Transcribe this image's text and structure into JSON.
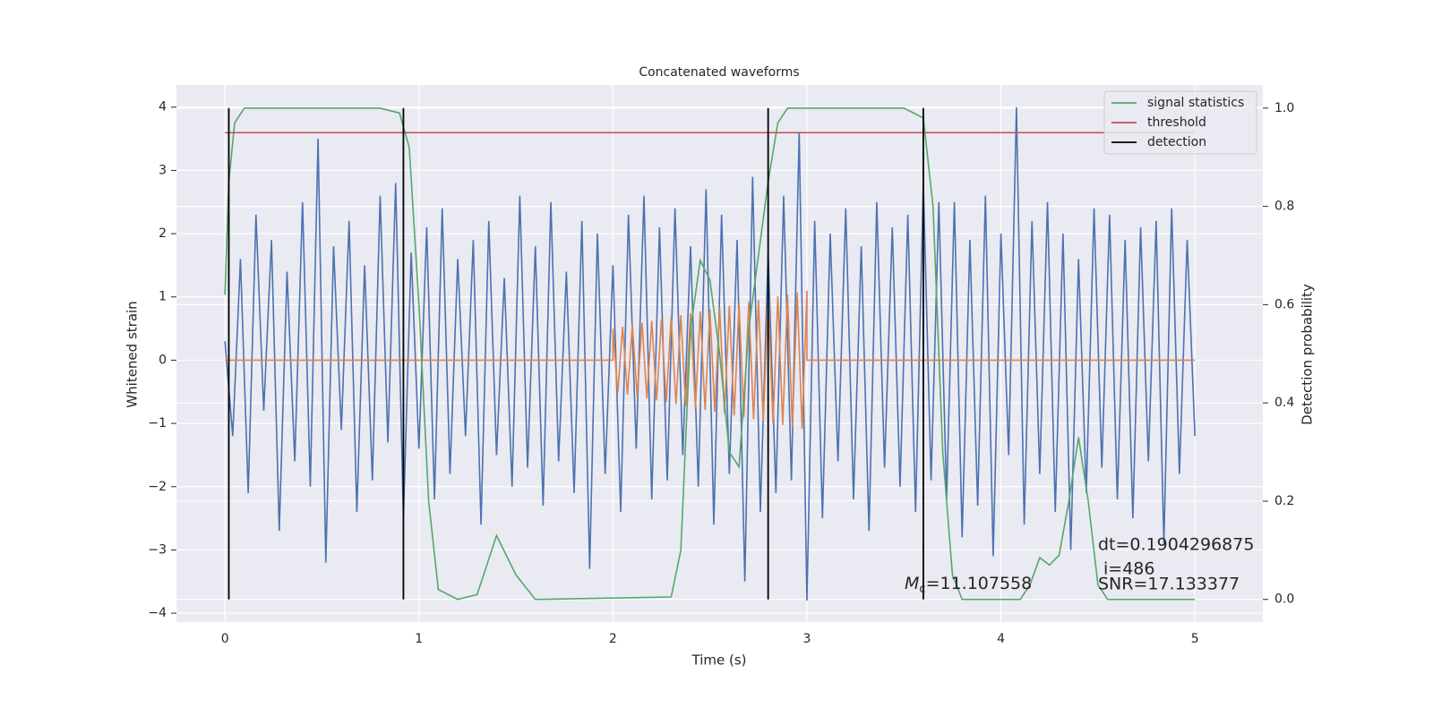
{
  "chart_data": {
    "type": "line",
    "title": "Concatenated waveforms",
    "x_label": "Time (s)",
    "y_label": "Whitened strain",
    "y2_label": "Detection probability",
    "xlim": [
      -0.25,
      5.35
    ],
    "ylim": [
      -4.14,
      4.35
    ],
    "y2lim": [
      -0.046,
      1.047
    ],
    "xticks": [
      0,
      1,
      2,
      3,
      4,
      5
    ],
    "yticks": [
      {
        "value": -4,
        "label": "−4"
      },
      {
        "value": -3,
        "label": "−3"
      },
      {
        "value": -2,
        "label": "−2"
      },
      {
        "value": -1,
        "label": "−1"
      },
      0,
      1,
      2,
      3,
      4
    ],
    "y2ticks": [
      {
        "value": 0,
        "label": "0.0"
      },
      0.2,
      0.4,
      0.6,
      0.8,
      {
        "value": 1,
        "label": "1.0"
      }
    ],
    "grid": true,
    "legend_position": "upper right",
    "series": [
      {
        "color": "#4c72b0",
        "x": [
          0,
          0.04,
          0.08,
          0.12,
          0.16,
          0.2,
          0.24,
          0.28,
          0.32,
          0.36,
          0.4,
          0.44,
          0.48,
          0.52,
          0.56,
          0.6,
          0.64,
          0.68,
          0.72,
          0.76,
          0.8,
          0.84,
          0.88,
          0.92,
          0.96,
          1,
          1.04,
          1.08,
          1.12,
          1.16,
          1.2,
          1.24,
          1.28,
          1.32,
          1.36,
          1.4,
          1.44,
          1.48,
          1.52,
          1.56,
          1.6,
          1.64,
          1.68,
          1.72,
          1.76,
          1.8,
          1.84,
          1.88,
          1.92,
          1.96,
          2,
          2.04,
          2.08,
          2.12,
          2.16,
          2.2,
          2.24,
          2.28,
          2.32,
          2.36,
          2.4,
          2.44,
          2.48,
          2.52,
          2.56,
          2.6,
          2.64,
          2.68,
          2.72,
          2.76,
          2.8,
          2.84,
          2.88,
          2.92,
          2.96,
          3,
          3.04,
          3.08,
          3.12,
          3.16,
          3.2,
          3.24,
          3.28,
          3.32,
          3.36,
          3.4,
          3.44,
          3.48,
          3.52,
          3.56,
          3.6,
          3.64,
          3.68,
          3.72,
          3.76,
          3.8,
          3.84,
          3.88,
          3.92,
          3.96,
          4,
          4.04,
          4.08,
          4.12,
          4.16,
          4.2,
          4.24,
          4.28,
          4.32,
          4.36,
          4.4,
          4.44,
          4.48,
          4.52,
          4.56,
          4.6,
          4.64,
          4.68,
          4.72,
          4.76,
          4.8,
          4.84,
          4.88,
          4.92,
          4.96,
          5
        ],
        "values": [
          0.3,
          -1.2,
          1.6,
          -2.1,
          2.3,
          -0.8,
          1.9,
          -2.7,
          1.4,
          -1.6,
          2.5,
          -2.0,
          3.5,
          -3.2,
          1.8,
          -1.1,
          2.2,
          -2.4,
          1.5,
          -1.9,
          2.6,
          -1.3,
          2.8,
          -2.5,
          1.7,
          -1.4,
          2.1,
          -2.2,
          2.4,
          -1.8,
          1.6,
          -1.2,
          1.9,
          -2.6,
          2.2,
          -1.5,
          1.3,
          -2.0,
          2.6,
          -1.7,
          1.8,
          -2.3,
          2.5,
          -1.6,
          1.4,
          -2.1,
          2.2,
          -3.3,
          2.0,
          -1.8,
          1.5,
          -2.4,
          2.3,
          -1.4,
          2.6,
          -2.2,
          2.1,
          -1.9,
          2.4,
          -1.5,
          1.8,
          -2.0,
          2.7,
          -2.6,
          2.3,
          -1.8,
          1.9,
          -3.5,
          2.9,
          -2.4,
          1.7,
          -2.1,
          2.6,
          -1.9,
          3.6,
          -3.8,
          2.2,
          -2.5,
          2.0,
          -1.6,
          2.4,
          -2.2,
          1.8,
          -2.7,
          2.5,
          -1.7,
          2.1,
          -2.0,
          2.3,
          -2.4,
          2.8,
          -1.9,
          2.5,
          -2.2,
          2.5,
          -2.8,
          1.9,
          -2.3,
          2.6,
          -3.1,
          2.0,
          -1.5,
          4.0,
          -2.6,
          2.2,
          -1.8,
          2.5,
          -2.4,
          2.0,
          -3.0,
          1.6,
          -2.1,
          2.4,
          -1.7,
          2.3,
          -2.2,
          1.9,
          -2.5,
          2.1,
          -1.6,
          2.2,
          -2.9,
          2.4,
          -1.8,
          1.9,
          -1.2
        ]
      },
      {
        "color": "#dd8452",
        "x": [
          0,
          2,
          2.0,
          2.025,
          2.05,
          2.075,
          2.1,
          2.125,
          2.15,
          2.175,
          2.2,
          2.225,
          2.25,
          2.275,
          2.3,
          2.325,
          2.35,
          2.375,
          2.4,
          2.425,
          2.45,
          2.475,
          2.5,
          2.525,
          2.55,
          2.575,
          2.6,
          2.625,
          2.65,
          2.675,
          2.7,
          2.725,
          2.75,
          2.775,
          2.8,
          2.825,
          2.85,
          2.875,
          2.9,
          2.925,
          2.95,
          2.975,
          3.0,
          3,
          5
        ],
        "values": [
          0,
          0,
          0.5,
          -0.515,
          0.53,
          -0.545,
          0.56,
          -0.575,
          0.59,
          -0.605,
          0.62,
          -0.635,
          0.65,
          -0.665,
          0.68,
          -0.695,
          0.71,
          -0.725,
          0.74,
          -0.755,
          0.77,
          -0.785,
          0.8,
          -0.815,
          0.83,
          -0.845,
          0.86,
          -0.875,
          0.89,
          -0.905,
          0.92,
          -0.935,
          0.95,
          -0.965,
          0.98,
          -0.995,
          1.01,
          -1.025,
          1.04,
          -1.055,
          1.07,
          -1.085,
          1.1,
          0,
          0
        ]
      },
      {
        "name": "signal statistics",
        "color": "#55a868",
        "axis": "y2",
        "x": [
          0,
          0.02,
          0.05,
          0.1,
          0.8,
          0.9,
          0.95,
          1.0,
          1.05,
          1.1,
          1.2,
          1.3,
          1.4,
          1.5,
          1.6,
          2.3,
          2.35,
          2.4,
          2.45,
          2.5,
          2.55,
          2.6,
          2.65,
          2.7,
          2.8,
          2.85,
          2.9,
          3.5,
          3.6,
          3.65,
          3.7,
          3.75,
          3.8,
          4.1,
          4.15,
          4.2,
          4.25,
          4.3,
          4.35,
          4.4,
          4.45,
          4.5,
          4.55,
          5.0
        ],
        "values": [
          0.62,
          0.85,
          0.97,
          1.0,
          1.0,
          0.99,
          0.92,
          0.6,
          0.2,
          0.02,
          0.0,
          0.01,
          0.13,
          0.05,
          0.0,
          0.005,
          0.1,
          0.55,
          0.69,
          0.65,
          0.5,
          0.3,
          0.27,
          0.55,
          0.85,
          0.97,
          1.0,
          1.0,
          0.98,
          0.8,
          0.3,
          0.05,
          0.0,
          0.0,
          0.03,
          0.085,
          0.07,
          0.09,
          0.2,
          0.33,
          0.2,
          0.03,
          0.0,
          0.0
        ]
      },
      {
        "name": "threshold",
        "color": "#c44e52",
        "axis": "y2",
        "x": [
          0,
          5
        ],
        "values": [
          0.95,
          0.95
        ]
      },
      {
        "name": "detection",
        "color": "#000000",
        "axis": "y2",
        "kind": "vlines",
        "x": [
          0.02,
          0.92,
          2.8,
          3.6
        ],
        "ymin": 0,
        "ymax": 1
      }
    ],
    "annotations": {
      "mc": {
        "symbol": "M",
        "subscript": "c",
        "text": "=11.107558"
      },
      "dt": "dt=0.1904296875",
      "i": "i=486",
      "snr": "SNR=17.133377"
    }
  }
}
